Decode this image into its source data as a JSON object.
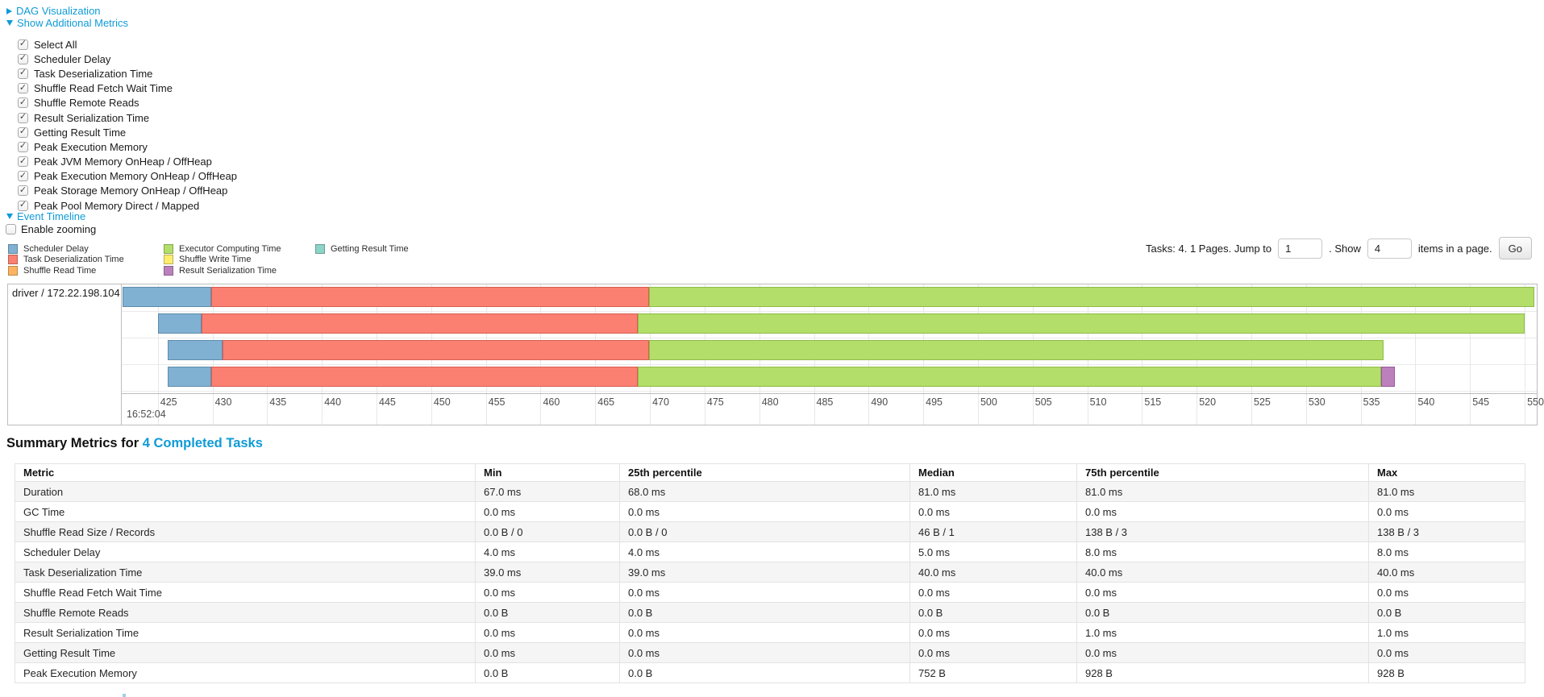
{
  "panels": {
    "dag": {
      "label": "DAG Visualization",
      "collapsed": true
    },
    "metrics": {
      "label": "Show Additional Metrics",
      "all_checked": true,
      "items": [
        "Select All",
        "Scheduler Delay",
        "Task Deserialization Time",
        "Shuffle Read Fetch Wait Time",
        "Shuffle Remote Reads",
        "Result Serialization Time",
        "Getting Result Time",
        "Peak Execution Memory",
        "Peak JVM Memory OnHeap / OffHeap",
        "Peak Execution Memory OnHeap / OffHeap",
        "Peak Storage Memory OnHeap / OffHeap",
        "Peak Pool Memory Direct / Mapped"
      ]
    },
    "timeline": {
      "label": "Event Timeline",
      "enable_zooming_label": "Enable zooming",
      "enable_zooming_checked": false
    }
  },
  "palette": {
    "scheduler-delay": {
      "fill": "#80B1D3",
      "border": "#5f8cab"
    },
    "task-deserialization": {
      "fill": "#FB8072",
      "border": "#d85f52"
    },
    "shuffle-read": {
      "fill": "#FDB462",
      "border": "#d99141"
    },
    "executor-computing": {
      "fill": "#B3DE69",
      "border": "#8fbc48"
    },
    "shuffle-write": {
      "fill": "#FFED6F",
      "border": "#d9c74e"
    },
    "result-serialization": {
      "fill": "#BC80BD",
      "border": "#99599a"
    },
    "getting-result": {
      "fill": "#8DD3C7",
      "border": "#67ad9f"
    }
  },
  "legend": {
    "columns": [
      [
        {
          "label": "Scheduler Delay",
          "metric": "scheduler-delay"
        },
        {
          "label": "Task Deserialization Time",
          "metric": "task-deserialization"
        },
        {
          "label": "Shuffle Read Time",
          "metric": "shuffle-read"
        }
      ],
      [
        {
          "label": "Executor Computing Time",
          "metric": "executor-computing"
        },
        {
          "label": "Shuffle Write Time",
          "metric": "shuffle-write"
        },
        {
          "label": "Result Serialization Time",
          "metric": "result-serialization"
        }
      ],
      [
        {
          "label": "Getting Result Time",
          "metric": "getting-result"
        }
      ]
    ]
  },
  "pagination": {
    "summary_text": "Tasks: 4. 1 Pages. Jump to",
    "jump_value": "1",
    "mid_text": ". Show",
    "page_size_value": "4",
    "suffix_text": "items in a page.",
    "go_label": "Go"
  },
  "chart_data": {
    "type": "timeline",
    "group_label": "driver / 172.22.198.104",
    "axis": {
      "min": 421.7,
      "max": 551.1,
      "ticks": [
        425,
        430,
        435,
        440,
        445,
        450,
        455,
        460,
        465,
        470,
        475,
        480,
        485,
        490,
        495,
        500,
        505,
        510,
        515,
        520,
        525,
        530,
        535,
        540,
        545,
        550
      ],
      "major_label": "16:52:04"
    },
    "tasks": [
      {
        "segments": [
          {
            "metric": "scheduler-delay",
            "from": 421.8,
            "to": 429.9
          },
          {
            "metric": "task-deserialization",
            "from": 429.9,
            "to": 469.9
          },
          {
            "metric": "executor-computing",
            "from": 469.9,
            "to": 550.9
          }
        ]
      },
      {
        "segments": [
          {
            "metric": "scheduler-delay",
            "from": 425.0,
            "to": 429.0
          },
          {
            "metric": "task-deserialization",
            "from": 429.0,
            "to": 468.9
          },
          {
            "metric": "executor-computing",
            "from": 468.9,
            "to": 550.0
          }
        ]
      },
      {
        "segments": [
          {
            "metric": "scheduler-delay",
            "from": 425.9,
            "to": 430.9
          },
          {
            "metric": "task-deserialization",
            "from": 430.9,
            "to": 469.9
          },
          {
            "metric": "executor-computing",
            "from": 469.9,
            "to": 537.1
          }
        ]
      },
      {
        "segments": [
          {
            "metric": "scheduler-delay",
            "from": 425.9,
            "to": 429.9
          },
          {
            "metric": "task-deserialization",
            "from": 429.9,
            "to": 468.9
          },
          {
            "metric": "executor-computing",
            "from": 468.9,
            "to": 536.9
          },
          {
            "metric": "result-serialization",
            "from": 536.9,
            "to": 538.1
          }
        ]
      }
    ]
  },
  "summary_metrics": {
    "title_prefix": "Summary Metrics for ",
    "title_link": "4 Completed Tasks",
    "table": {
      "headers": [
        "Metric",
        "Min",
        "25th percentile",
        "Median",
        "75th percentile",
        "Max"
      ],
      "rows": [
        [
          "Duration",
          "67.0 ms",
          "68.0 ms",
          "81.0 ms",
          "81.0 ms",
          "81.0 ms"
        ],
        [
          "GC Time",
          "0.0 ms",
          "0.0 ms",
          "0.0 ms",
          "0.0 ms",
          "0.0 ms"
        ],
        [
          "Shuffle Read Size / Records",
          "0.0 B / 0",
          "0.0 B / 0",
          "46 B / 1",
          "138 B / 3",
          "138 B / 3"
        ],
        [
          "Scheduler Delay",
          "4.0 ms",
          "4.0 ms",
          "5.0 ms",
          "8.0 ms",
          "8.0 ms"
        ],
        [
          "Task Deserialization Time",
          "39.0 ms",
          "39.0 ms",
          "40.0 ms",
          "40.0 ms",
          "40.0 ms"
        ],
        [
          "Shuffle Read Fetch Wait Time",
          "0.0 ms",
          "0.0 ms",
          "0.0 ms",
          "0.0 ms",
          "0.0 ms"
        ],
        [
          "Shuffle Remote Reads",
          "0.0 B",
          "0.0 B",
          "0.0 B",
          "0.0 B",
          "0.0 B"
        ],
        [
          "Result Serialization Time",
          "0.0 ms",
          "0.0 ms",
          "0.0 ms",
          "1.0 ms",
          "1.0 ms"
        ],
        [
          "Getting Result Time",
          "0.0 ms",
          "0.0 ms",
          "0.0 ms",
          "0.0 ms",
          "0.0 ms"
        ],
        [
          "Peak Execution Memory",
          "0.0 B",
          "0.0 B",
          "752 B",
          "928 B",
          "928 B"
        ]
      ]
    }
  }
}
